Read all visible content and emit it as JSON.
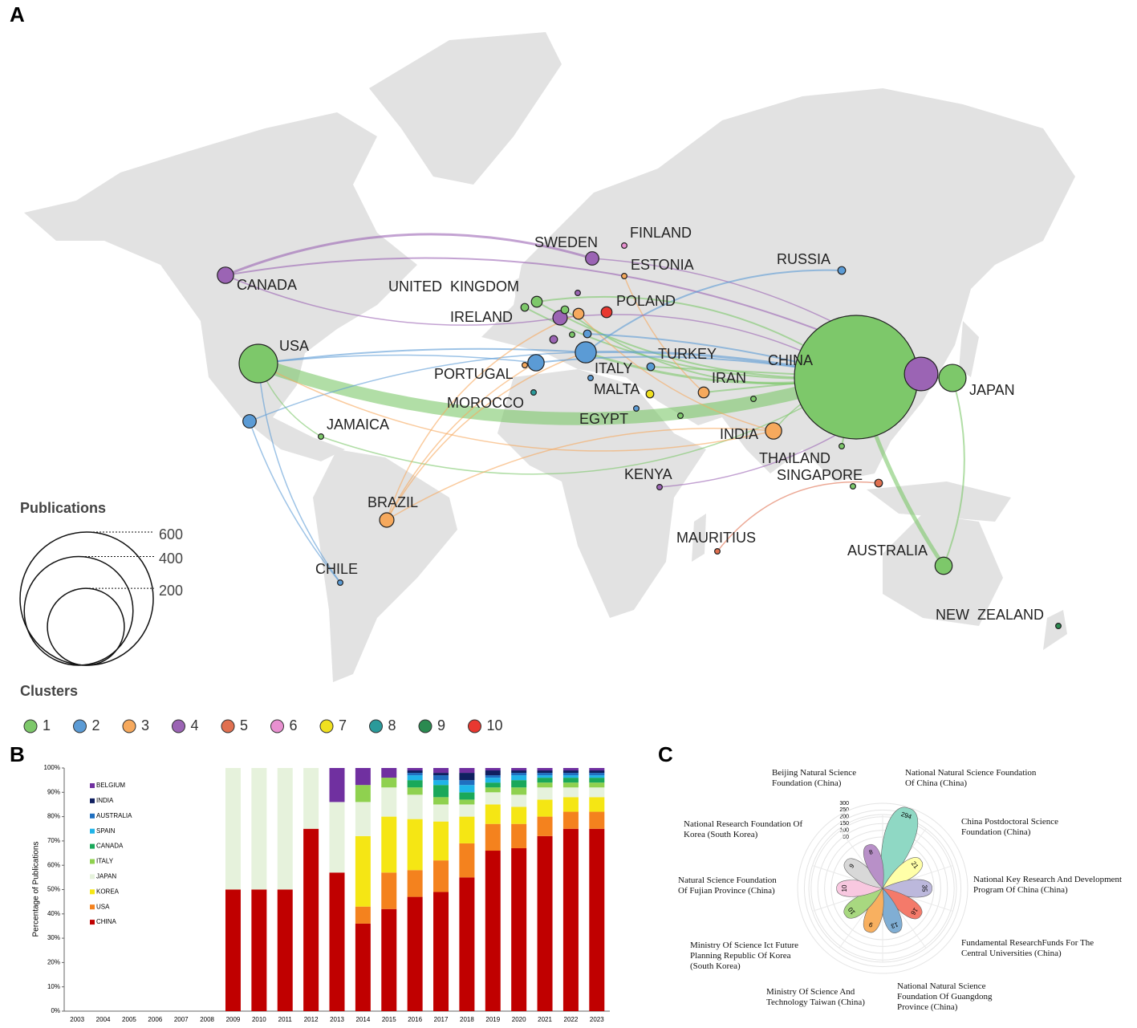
{
  "chart_data": [
    {
      "type": "network-map",
      "panel": "A",
      "nodes": [
        {
          "name": "CHINA",
          "cluster": 1,
          "value": 516
        },
        {
          "name": null,
          "cluster": 4,
          "value": 38
        },
        {
          "name": "JAPAN",
          "cluster": 1,
          "value": 25
        },
        {
          "name": "USA",
          "cluster": 1,
          "value": 50
        },
        {
          "name": "CANADA",
          "cluster": 4,
          "value": 9
        },
        {
          "name": "SWEDEN",
          "cluster": 4,
          "value": 6
        },
        {
          "name": "FINLAND",
          "cluster": 6,
          "value": 1
        },
        {
          "name": "ESTONIA",
          "cluster": 3,
          "value": 1
        },
        {
          "name": "RUSSIA",
          "cluster": 2,
          "value": 2
        },
        {
          "name": "UNITED  KINGDOM",
          "cluster": 1,
          "value": 4
        },
        {
          "name": "IRELAND",
          "cluster": 1,
          "value": 2
        },
        {
          "name": "POLAND",
          "cluster": 10,
          "value": 4
        },
        {
          "name": null,
          "cluster": 3,
          "value": 4
        },
        {
          "name": null,
          "cluster": 4,
          "value": 7
        },
        {
          "name": null,
          "cluster": 1,
          "value": 2
        },
        {
          "name": null,
          "cluster": 4,
          "value": 1
        },
        {
          "name": null,
          "cluster": 4,
          "value": 2
        },
        {
          "name": null,
          "cluster": 1,
          "value": 1
        },
        {
          "name": null,
          "cluster": 2,
          "value": 2
        },
        {
          "name": "ITALY",
          "cluster": 2,
          "value": 15
        },
        {
          "name": "PORTUGAL",
          "cluster": 2,
          "value": 9
        },
        {
          "name": null,
          "cluster": 3,
          "value": 1
        },
        {
          "name": "TURKEY",
          "cluster": 2,
          "value": 2
        },
        {
          "name": null,
          "cluster": 2,
          "value": 1
        },
        {
          "name": "IRAN",
          "cluster": 3,
          "value": 4
        },
        {
          "name": "MALTA",
          "cluster": 7,
          "value": 2
        },
        {
          "name": "MOROCCO",
          "cluster": 8,
          "value": 1
        },
        {
          "name": "EGYPT",
          "cluster": 2,
          "value": 1
        },
        {
          "name": null,
          "cluster": 1,
          "value": 1
        },
        {
          "name": null,
          "cluster": 1,
          "value": 1
        },
        {
          "name": "INDIA",
          "cluster": 3,
          "value": 9
        },
        {
          "name": "JAMAICA",
          "cluster": 1,
          "value": 1
        },
        {
          "name": null,
          "cluster": 2,
          "value": 6
        },
        {
          "name": "THAILAND",
          "cluster": 1,
          "value": 1
        },
        {
          "name": "SINGAPORE",
          "cluster": 1,
          "value": 1
        },
        {
          "name": null,
          "cluster": 5,
          "value": 2
        },
        {
          "name": "KENYA",
          "cluster": 4,
          "value": 1
        },
        {
          "name": "BRAZIL",
          "cluster": 3,
          "value": 7
        },
        {
          "name": "MAURITIUS",
          "cluster": 5,
          "value": 1
        },
        {
          "name": "CHILE",
          "cluster": 2,
          "value": 1
        },
        {
          "name": "AUSTRALIA",
          "cluster": 1,
          "value": 10
        },
        {
          "name": "NEW  ZEALAND",
          "cluster": 9,
          "value": 1
        }
      ],
      "size_legend": {
        "title": "Publications",
        "values": [
          600,
          400,
          200
        ]
      },
      "clusters": {
        "title": "Clusters",
        "names": [
          1,
          2,
          3,
          4,
          5,
          6,
          7,
          8,
          9,
          10
        ],
        "colors": [
          "#7dc86a",
          "#5b9bd5",
          "#f6a95d",
          "#9b64b4",
          "#e07050",
          "#e890d0",
          "#f0e020",
          "#2a9a9a",
          "#2a8a50",
          "#e83830"
        ]
      }
    },
    {
      "type": "bar",
      "stacked": true,
      "panel": "B",
      "categories": [
        "2003",
        "2004",
        "2005",
        "2006",
        "2007",
        "2008",
        "2009",
        "2010",
        "2011",
        "2012",
        "2013",
        "2014",
        "2015",
        "2016",
        "2017",
        "2018",
        "2019",
        "2020",
        "2021",
        "2022",
        "2023"
      ],
      "ylabel": "Percentage of Publications",
      "ylim": [
        0,
        100
      ],
      "yticks": [
        {
          "value": 0,
          "label": "0%"
        },
        {
          "value": 10,
          "label": "10%"
        },
        {
          "value": 20,
          "label": "20%"
        },
        {
          "value": 30,
          "label": "30%"
        },
        {
          "value": 40,
          "label": "40%"
        },
        {
          "value": 50,
          "label": "50%"
        },
        {
          "value": 60,
          "label": "60%"
        },
        {
          "value": 70,
          "label": "70%"
        },
        {
          "value": 80,
          "label": "80%"
        },
        {
          "value": 90,
          "label": "90%"
        },
        {
          "value": 100,
          "label": "100%"
        }
      ],
      "series": [
        {
          "name": "CHINA",
          "color": "#c00000",
          "values": [
            0,
            0,
            0,
            0,
            0,
            0,
            50,
            50,
            50,
            75,
            57,
            36,
            42,
            47,
            49,
            55,
            66,
            67,
            72,
            75,
            75
          ]
        },
        {
          "name": "USA",
          "color": "#f4821e",
          "values": [
            0,
            0,
            0,
            0,
            0,
            0,
            0,
            0,
            0,
            0,
            0,
            7,
            15,
            11,
            13,
            14,
            11,
            10,
            8,
            7,
            7
          ]
        },
        {
          "name": "KOREA",
          "color": "#f5e614",
          "values": [
            0,
            0,
            0,
            0,
            0,
            0,
            0,
            0,
            0,
            0,
            0,
            29,
            23,
            21,
            16,
            11,
            8,
            7,
            7,
            6,
            6
          ]
        },
        {
          "name": "JAPAN",
          "color": "#e6f2dc",
          "values": [
            0,
            0,
            0,
            0,
            0,
            0,
            50,
            50,
            50,
            25,
            29,
            14,
            12,
            10,
            7,
            5,
            5,
            5,
            5,
            4,
            4
          ]
        },
        {
          "name": "ITALY",
          "color": "#8fd14f",
          "values": [
            0,
            0,
            0,
            0,
            0,
            0,
            0,
            0,
            0,
            0,
            0,
            7,
            4,
            3,
            3,
            2,
            2,
            3,
            2,
            2,
            2
          ]
        },
        {
          "name": "CANADA",
          "color": "#1aa85a",
          "values": [
            0,
            0,
            0,
            0,
            0,
            0,
            0,
            0,
            0,
            0,
            0,
            0,
            0,
            3,
            5,
            3,
            2,
            3,
            2,
            2,
            2
          ]
        },
        {
          "name": "SPAIN",
          "color": "#20b4e8",
          "values": [
            0,
            0,
            0,
            0,
            0,
            0,
            0,
            0,
            0,
            0,
            0,
            0,
            0,
            2,
            2,
            3,
            2,
            2,
            1,
            1,
            1
          ]
        },
        {
          "name": "AUSTRALIA",
          "color": "#1f6fc0",
          "values": [
            0,
            0,
            0,
            0,
            0,
            0,
            0,
            0,
            0,
            0,
            0,
            0,
            0,
            1,
            2,
            2,
            1,
            1,
            1,
            1,
            1
          ]
        },
        {
          "name": "INDIA",
          "color": "#102060",
          "values": [
            0,
            0,
            0,
            0,
            0,
            0,
            0,
            0,
            0,
            0,
            0,
            0,
            0,
            1,
            1,
            3,
            2,
            1,
            1,
            1,
            1
          ]
        },
        {
          "name": "BELGIUM",
          "color": "#7030a0",
          "values": [
            0,
            0,
            0,
            0,
            0,
            0,
            0,
            0,
            0,
            0,
            14,
            7,
            4,
            1,
            2,
            2,
            1,
            1,
            1,
            1,
            1
          ]
        }
      ]
    },
    {
      "type": "rose",
      "panel": "C",
      "categories": [
        "National Natural Science Foundation Of China (China)",
        "China Postdoctoral Science Foundation (China)",
        "National Key Research And Development Program Of China (China)",
        "Fundamental ResearchFunds For The Central Universities (China)",
        "National Natural Science Foundation Of Guangdong Province (China)",
        "Ministry Of Science And Technology Taiwan (China)",
        "Ministry Of Science Ict Future Planning Republic Of Korea (South Korea)",
        "Natural Science Foundation Of Fujian Province (China)",
        "National Research Foundation Of Korea (South Korea)",
        "Beijing Natural Science Foundation (China)"
      ],
      "values": [
        294,
        21,
        35,
        16,
        13,
        9,
        10,
        10,
        9,
        8
      ],
      "colors": [
        "#8fd8c4",
        "#ffffa8",
        "#bcb8dc",
        "#f47a6a",
        "#80aed4",
        "#f8b060",
        "#a8d880",
        "#f8c8e0",
        "#d8d8d8",
        "#b890c8"
      ],
      "rlim": [
        0,
        300
      ],
      "rticks": [
        50,
        100,
        150,
        200,
        250,
        300
      ]
    }
  ]
}
